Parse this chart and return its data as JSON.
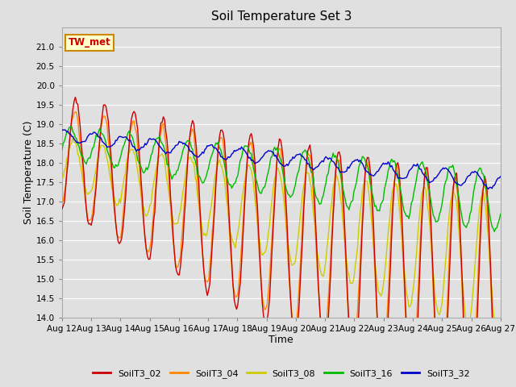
{
  "title": "Soil Temperature Set 3",
  "xlabel": "Time",
  "ylabel": "Soil Temperature (C)",
  "ylim": [
    14.0,
    21.5
  ],
  "yticks": [
    14.0,
    14.5,
    15.0,
    15.5,
    16.0,
    16.5,
    17.0,
    17.5,
    18.0,
    18.5,
    19.0,
    19.5,
    20.0,
    20.5,
    21.0
  ],
  "xtick_labels": [
    "Aug 12",
    "Aug 13",
    "Aug 14",
    "Aug 15",
    "Aug 16",
    "Aug 17",
    "Aug 18",
    "Aug 19",
    "Aug 20",
    "Aug 21",
    "Aug 22",
    "Aug 23",
    "Aug 24",
    "Aug 25",
    "Aug 26",
    "Aug 27"
  ],
  "series_names": [
    "SoilT3_02",
    "SoilT3_04",
    "SoilT3_08",
    "SoilT3_16",
    "SoilT3_32"
  ],
  "series_colors": [
    "#cc0000",
    "#ff8800",
    "#cccc00",
    "#00bb00",
    "#0000cc"
  ],
  "linewidth": 1.0,
  "annotation_text": "TW_met",
  "annotation_color": "#cc0000",
  "annotation_bg": "#ffffcc",
  "annotation_border": "#cc8800",
  "bg_color": "#e0e0e0",
  "figsize": [
    6.4,
    4.8
  ],
  "dpi": 100
}
